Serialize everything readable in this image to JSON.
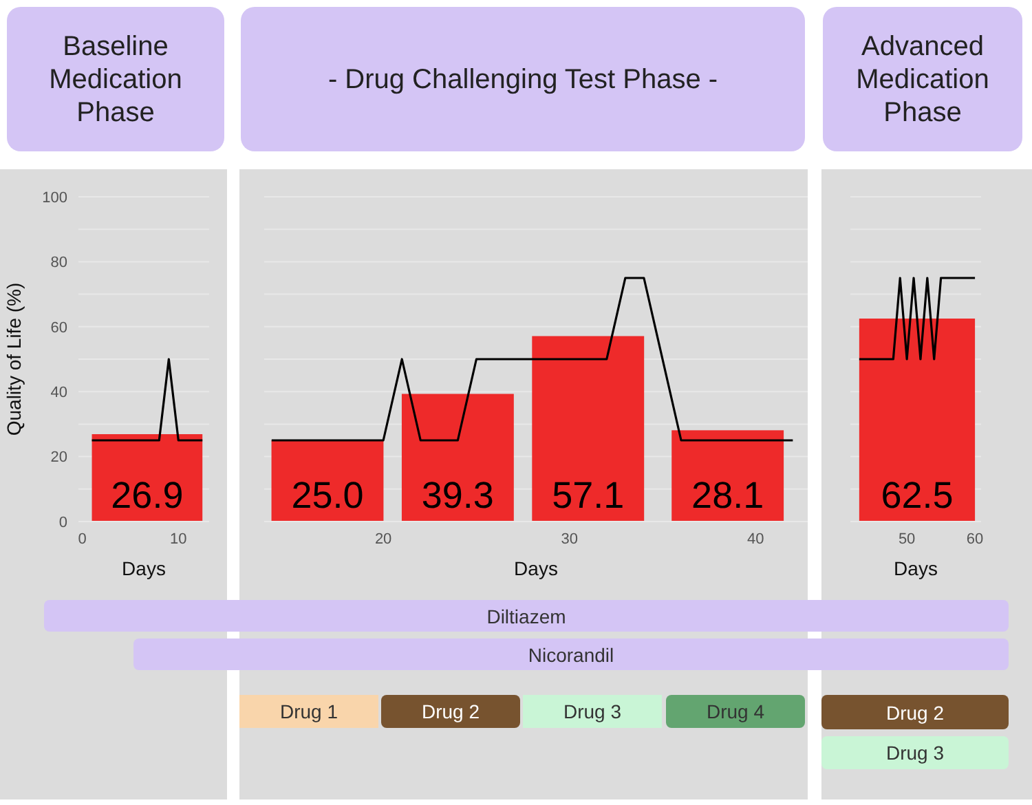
{
  "chart_data": [
    {
      "type": "bar",
      "title": "Baseline Medication Phase",
      "xlabel": "Days",
      "ylabel": "Quality of Life (%)",
      "xlim": [
        -0.4,
        13.2
      ],
      "xticks": [
        0,
        10
      ],
      "ylim": [
        0,
        100
      ],
      "yticks": [
        0,
        {
          "value": 10,
          "label": null
        },
        20,
        {
          "value": 30,
          "label": null
        },
        40,
        {
          "value": 50,
          "label": null
        },
        60,
        {
          "value": 70,
          "label": null
        },
        80,
        {
          "value": 90,
          "label": null
        },
        100
      ],
      "grid": "y",
      "series": [
        {
          "type": "bar",
          "color": "#ee2a2a",
          "x": [
            6.75
          ],
          "values": [
            26.9
          ],
          "value_labels": [
            "26.9"
          ]
        },
        {
          "type": "line",
          "color": "#000000",
          "x": [
            1,
            8,
            9,
            10,
            12.5
          ],
          "values": [
            25,
            25,
            50,
            25,
            25
          ]
        }
      ]
    },
    {
      "type": "bar",
      "title": "- Drug Challenging Test Phase -",
      "xlabel": "Days",
      "xlim": [
        13.6,
        42.8
      ],
      "xticks": [
        20,
        30,
        40
      ],
      "ylim": [
        0,
        100
      ],
      "yticks": [
        0,
        {
          "value": 10,
          "label": null
        },
        20,
        {
          "value": 30,
          "label": null
        },
        40,
        {
          "value": 50,
          "label": null
        },
        60,
        {
          "value": 70,
          "label": null
        },
        80,
        {
          "value": 90,
          "label": null
        },
        100
      ],
      "grid": "y",
      "tick_labels": "x",
      "series": [
        {
          "type": "bar",
          "color": "#ee2a2a",
          "x": [
            17,
            24,
            31,
            38.5
          ],
          "values": [
            25.0,
            39.3,
            57.1,
            28.1
          ],
          "value_labels": [
            "25.0",
            "39.3",
            "57.1",
            "28.1"
          ]
        },
        {
          "type": "line",
          "color": "#000000",
          "x": [
            14,
            20,
            21,
            22,
            24,
            25,
            32,
            33,
            34,
            36,
            42
          ],
          "values": [
            25,
            25,
            50,
            25,
            25,
            50,
            50,
            75,
            75,
            25,
            25
          ]
        }
      ]
    },
    {
      "type": "bar",
      "title": "Advanced Medication Phase",
      "xlabel": "Days",
      "xlim": [
        41.7,
        60.9
      ],
      "xticks": [
        50,
        60
      ],
      "ylim": [
        0,
        100
      ],
      "yticks": [
        0,
        {
          "value": 10,
          "label": null
        },
        20,
        {
          "value": 30,
          "label": null
        },
        40,
        {
          "value": 50,
          "label": null
        },
        60,
        {
          "value": 70,
          "label": null
        },
        80,
        {
          "value": 90,
          "label": null
        },
        100
      ],
      "grid": "y",
      "tick_labels": "x",
      "series": [
        {
          "type": "bar",
          "color": "#ee2a2a",
          "x": [
            51.5
          ],
          "values": [
            62.5
          ],
          "value_labels": [
            "62.5"
          ]
        },
        {
          "type": "line",
          "color": "#000000",
          "x": [
            43,
            48,
            49,
            50,
            51,
            52,
            53,
            54,
            55,
            60
          ],
          "values": [
            50,
            50,
            75,
            50,
            75,
            50,
            75,
            50,
            75,
            75
          ]
        }
      ]
    },
    {
      "type": "other",
      "annotations": [
        "Diltiazem",
        "Nicorandil",
        "Drug 1",
        "Drug 2",
        "Drug 3",
        "Drug 4",
        "Drug 2",
        "Drug 3"
      ],
      "colors": [
        "#d4c5f5",
        "#d4c5f5",
        "#f9d5ab",
        "#77532f",
        "#c9f5d6",
        "#63a570",
        "#77532f",
        "#c9f5d6"
      ]
    }
  ]
}
